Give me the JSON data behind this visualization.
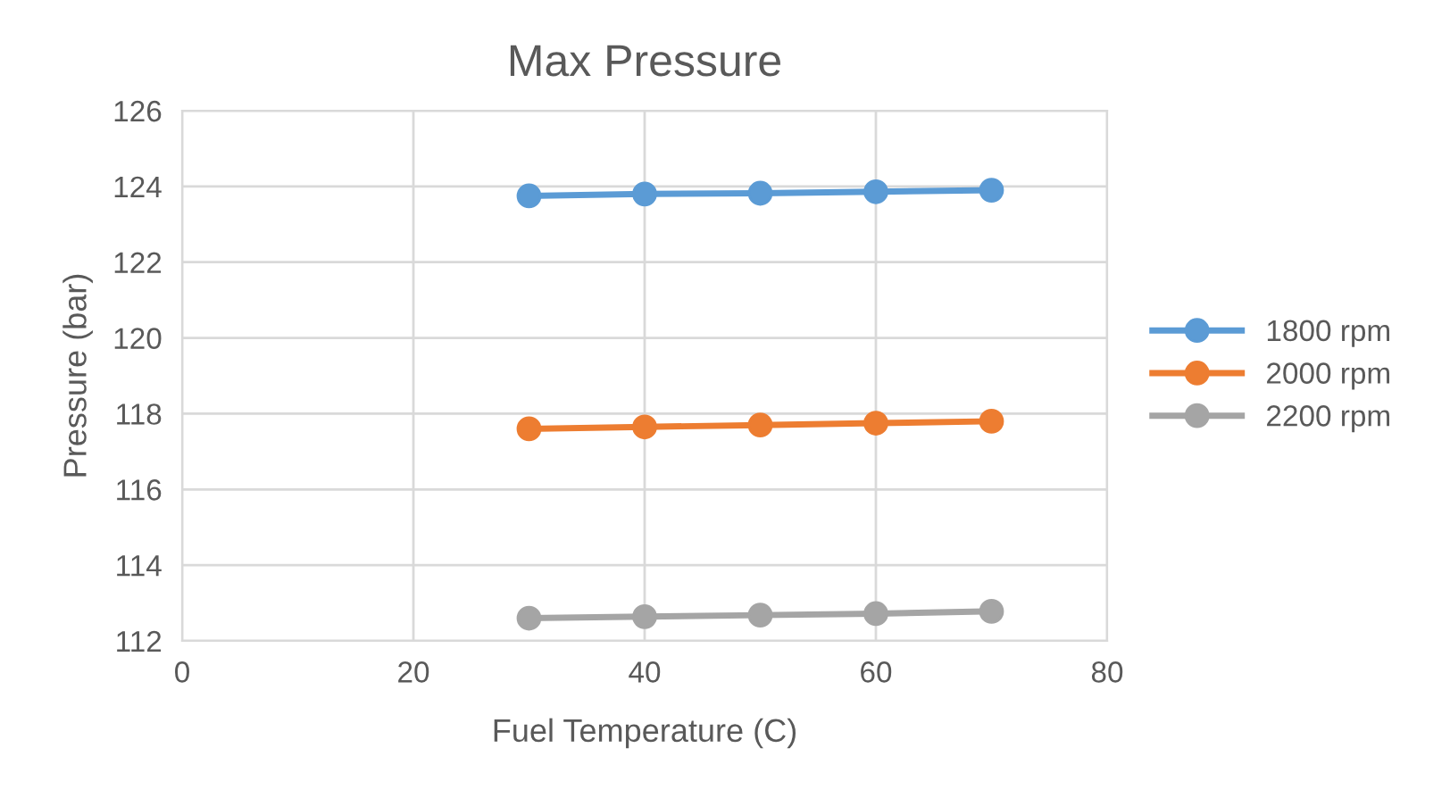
{
  "chart_data": {
    "type": "line",
    "title": "Max Pressure",
    "xlabel": "Fuel Temperature (C)",
    "ylabel": "Pressure (bar)",
    "x": [
      30,
      40,
      50,
      60,
      70
    ],
    "series": [
      {
        "name": "1800 rpm",
        "color": "#5b9bd5",
        "values": [
          123.75,
          123.8,
          123.82,
          123.86,
          123.9
        ]
      },
      {
        "name": "2000 rpm",
        "color": "#ed7d31",
        "values": [
          117.6,
          117.65,
          117.7,
          117.75,
          117.8
        ]
      },
      {
        "name": "2200 rpm",
        "color": "#a5a5a5",
        "values": [
          112.6,
          112.64,
          112.68,
          112.72,
          112.78
        ]
      }
    ],
    "xlim": [
      0,
      80
    ],
    "xticks": [
      0,
      20,
      40,
      60,
      80
    ],
    "ylim": [
      112,
      126
    ],
    "yticks": [
      112,
      114,
      116,
      118,
      120,
      122,
      124,
      126
    ],
    "grid": true,
    "legend": "right",
    "marker": "circle",
    "line_style": "solid"
  }
}
